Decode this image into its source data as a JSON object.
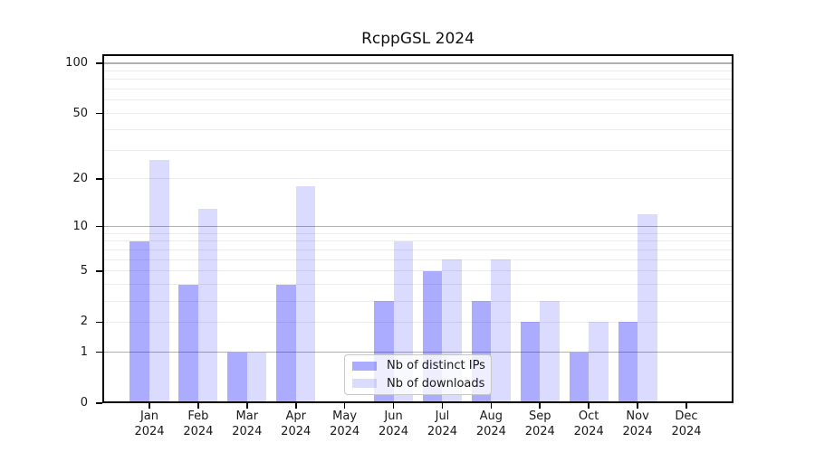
{
  "chart_data": {
    "type": "bar",
    "title": "RcppGSL 2024",
    "categories": [
      "Jan",
      "Feb",
      "Mar",
      "Apr",
      "May",
      "Jun",
      "Jul",
      "Aug",
      "Sep",
      "Oct",
      "Nov",
      "Dec"
    ],
    "year_label": "2024",
    "series": [
      {
        "name": "Nb of distinct IPs",
        "color": "#0000FF54",
        "values": [
          8,
          4,
          1,
          4,
          0,
          3,
          5,
          3,
          2,
          1,
          2,
          0
        ]
      },
      {
        "name": "Nb of downloads",
        "color": "#0000FF24",
        "values": [
          26,
          13,
          1,
          18,
          0,
          8,
          6,
          6,
          3,
          2,
          12,
          0
        ]
      }
    ],
    "yscale": "log1p",
    "yticks": [
      0,
      1,
      2,
      5,
      10,
      20,
      50,
      100
    ],
    "ylim": [
      0,
      113
    ],
    "xlabel": "",
    "ylabel": "",
    "grid": {
      "major": [
        1,
        10,
        100
      ],
      "minor": [
        2,
        3,
        4,
        5,
        6,
        7,
        8,
        9,
        20,
        30,
        40,
        50,
        60,
        70,
        80,
        90
      ],
      "major_color": "#b0b0b0",
      "minor_color": "#ececec"
    },
    "legend_position": "lower center-right inside plot",
    "axis_color": "#000000"
  }
}
